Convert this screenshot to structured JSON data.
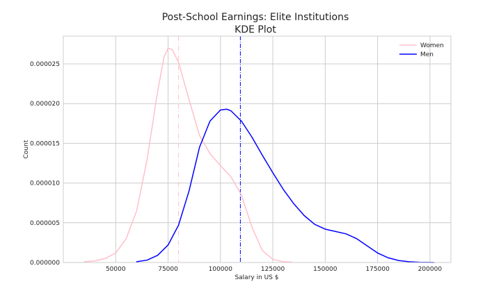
{
  "chart_data": {
    "type": "line",
    "title": "Post-School Earnings: Elite Institutions",
    "subtitle": "KDE Plot",
    "xlabel": "Salary in US $",
    "ylabel": "Count",
    "xlim": [
      25000,
      210000
    ],
    "ylim": [
      0,
      2.85e-05
    ],
    "xticks": [
      50000,
      75000,
      100000,
      125000,
      150000,
      175000,
      200000
    ],
    "xtick_labels": [
      "50000",
      "75000",
      "100000",
      "125000",
      "150000",
      "175000",
      "200000"
    ],
    "yticks": [
      0,
      5e-06,
      1e-05,
      1.5e-05,
      2e-05,
      2.5e-05
    ],
    "ytick_labels": [
      "0.000000",
      "0.000005",
      "0.000010",
      "0.000015",
      "0.000020",
      "0.000025"
    ],
    "grid": true,
    "legend_position": "top-right",
    "series": [
      {
        "name": "Women",
        "color": "#ffc0cb",
        "mean": 80000,
        "x": [
          35000,
          40000,
          45000,
          50000,
          55000,
          60000,
          65000,
          70000,
          73000,
          75000,
          77000,
          80000,
          85000,
          90000,
          95000,
          100000,
          105000,
          110000,
          115000,
          120000,
          125000,
          130000,
          134000
        ],
        "y": [
          1e-07,
          2e-07,
          5e-07,
          1.2e-06,
          3e-06,
          6.5e-06,
          1.3e-05,
          2.15e-05,
          2.58e-05,
          2.7e-05,
          2.68e-05,
          2.52e-05,
          2.05e-05,
          1.6e-05,
          1.37e-05,
          1.22e-05,
          1.08e-05,
          8.5e-06,
          4.5e-06,
          1.5e-06,
          4e-07,
          1e-07,
          5e-08
        ]
      },
      {
        "name": "Men",
        "color": "#0000ff",
        "mean": 109500,
        "x": [
          60000,
          65000,
          70000,
          75000,
          80000,
          85000,
          90000,
          95000,
          100000,
          103000,
          105000,
          110000,
          115000,
          120000,
          125000,
          130000,
          135000,
          140000,
          145000,
          150000,
          155000,
          160000,
          165000,
          170000,
          175000,
          180000,
          185000,
          190000,
          195000,
          200000,
          202000
        ],
        "y": [
          1e-07,
          3e-07,
          9e-07,
          2.2e-06,
          4.7e-06,
          9e-06,
          1.45e-05,
          1.78e-05,
          1.92e-05,
          1.93e-05,
          1.91e-05,
          1.78e-05,
          1.58e-05,
          1.35e-05,
          1.13e-05,
          9.2e-06,
          7.4e-06,
          5.9e-06,
          4.8e-06,
          4.2e-06,
          3.9e-06,
          3.6e-06,
          3e-06,
          2.1e-06,
          1.2e-06,
          6e-07,
          2.5e-07,
          1e-07,
          3e-08,
          1e-08,
          0.0
        ]
      }
    ]
  }
}
